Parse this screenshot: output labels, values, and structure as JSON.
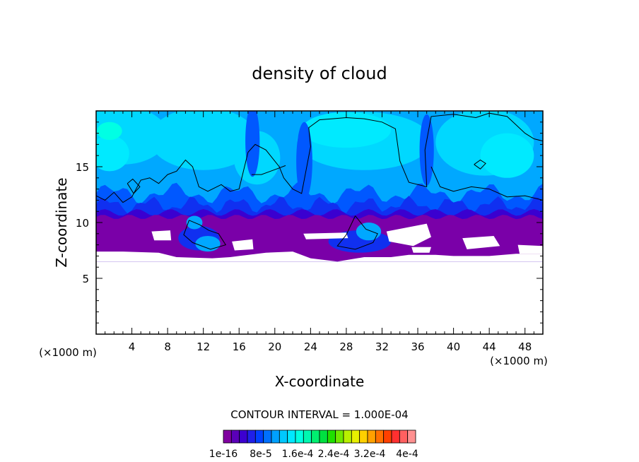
{
  "chart_data": {
    "type": "heatmap",
    "title": "density of cloud",
    "xlabel": "X-coordinate",
    "ylabel": "Z-coordinate",
    "x_unit": "(×1000 m)",
    "x_unit_right": "(×1000 m)",
    "xlim": [
      0,
      50
    ],
    "ylim": [
      0,
      20
    ],
    "x_ticks": [
      4,
      8,
      12,
      16,
      20,
      24,
      28,
      32,
      36,
      40,
      44,
      48
    ],
    "y_ticks": [
      5,
      10,
      15
    ],
    "grid": false,
    "contour_interval": "CONTOUR INTERVAL = 1.000E-04",
    "colorbar_labels": [
      "1e-16",
      "8e-5",
      "1.6e-4",
      "2.4e-4",
      "3.2e-4",
      "4e-4"
    ],
    "colorbar_colors": [
      "#8000a0",
      "#5a00b8",
      "#3c00d0",
      "#2020e8",
      "#0040ff",
      "#0070ff",
      "#00a0ff",
      "#00c8ff",
      "#00e8ff",
      "#00ffe0",
      "#00f8b0",
      "#00f070",
      "#00e040",
      "#20e000",
      "#70e800",
      "#b8f000",
      "#e8f000",
      "#ffd000",
      "#ffa000",
      "#ff7000",
      "#ff4000",
      "#ff3030",
      "#ff6060",
      "#ff9090"
    ]
  }
}
